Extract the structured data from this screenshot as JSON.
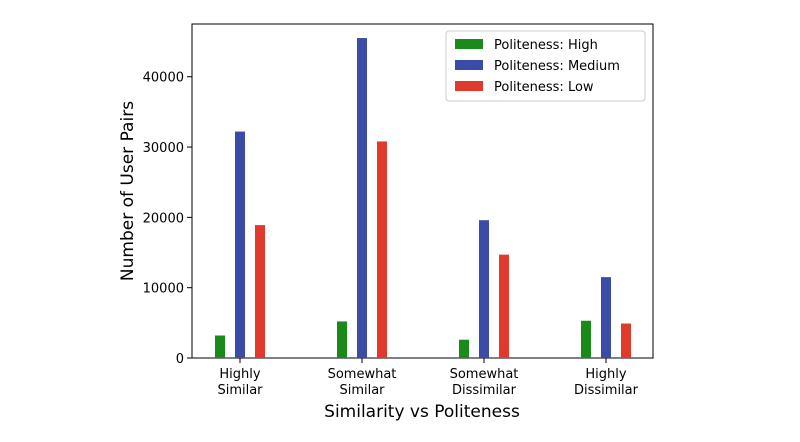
{
  "chart_data": {
    "type": "bar",
    "categories": [
      [
        "Highly",
        "Similar"
      ],
      [
        "Somewhat",
        "Similar"
      ],
      [
        "Somewhat",
        "Dissimilar"
      ],
      [
        "Highly",
        "Dissimilar"
      ]
    ],
    "series": [
      {
        "name": "Politeness: High",
        "color": "#1a8a1a",
        "values": [
          3200,
          5200,
          2600,
          5300
        ]
      },
      {
        "name": "Politeness: Medium",
        "color": "#3a4ba8",
        "values": [
          32200,
          45500,
          19600,
          11500
        ]
      },
      {
        "name": "Politeness: Low",
        "color": "#e03a2c",
        "values": [
          18900,
          30800,
          14700,
          4900
        ]
      }
    ],
    "xlabel": "Similarity vs Politeness",
    "ylabel": "Number of User Pairs",
    "ylim": [
      0,
      47500
    ],
    "yticks": [
      0,
      10000,
      20000,
      30000,
      40000
    ],
    "legend_position": "top-right",
    "grid": false
  }
}
